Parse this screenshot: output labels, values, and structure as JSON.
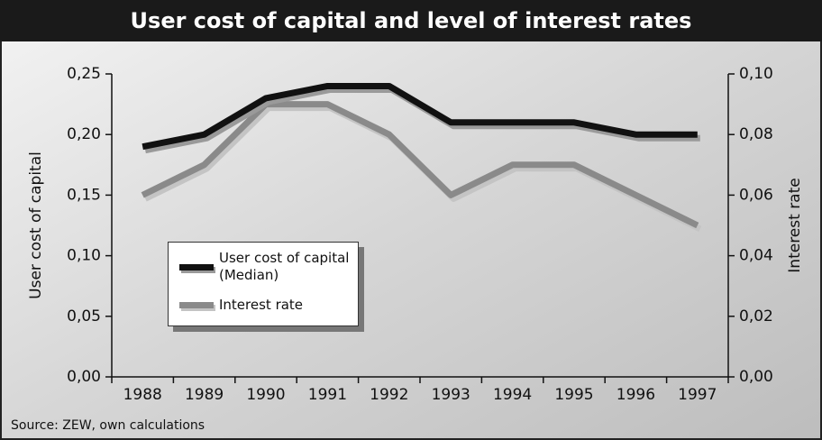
{
  "chart_data": {
    "type": "line",
    "title": "User cost of capital and level of interest rates",
    "source": "Source: ZEW, own calculations",
    "ylabel": "User cost of capital",
    "y2label": "Interest rate",
    "categories": [
      "1988",
      "1989",
      "1990",
      "1991",
      "1992",
      "1993",
      "1994",
      "1995",
      "1996",
      "1997"
    ],
    "series": [
      {
        "name": "User cost of capital (Median)",
        "color": "#111111",
        "values": [
          0.19,
          0.2,
          0.23,
          0.24,
          0.24,
          0.21,
          0.21,
          0.21,
          0.2,
          0.2
        ]
      },
      {
        "name": "Interest rate",
        "color": "#8a8a8a",
        "axis": "y2",
        "values": [
          0.06,
          0.07,
          0.09,
          0.09,
          0.08,
          0.06,
          0.07,
          0.07,
          0.06,
          0.05
        ]
      }
    ],
    "ylim": [
      0,
      0.25
    ],
    "yticks": [
      {
        "value": 0,
        "label": "0,00"
      },
      {
        "value": 0.05,
        "label": "0,05"
      },
      {
        "value": 0.1,
        "label": "0,10"
      },
      {
        "value": 0.15,
        "label": "0,15"
      },
      {
        "value": 0.2,
        "label": "0,20"
      },
      {
        "value": 0.25,
        "label": "0,25"
      }
    ],
    "y2lim": [
      0,
      0.1
    ],
    "y2ticks": [
      {
        "value": 0,
        "label": "0,00"
      },
      {
        "value": 0.02,
        "label": "0,02"
      },
      {
        "value": 0.04,
        "label": "0,04"
      },
      {
        "value": 0.06,
        "label": "0,06"
      },
      {
        "value": 0.08,
        "label": "0,08"
      },
      {
        "value": 0.1,
        "label": "0,10"
      }
    ]
  }
}
